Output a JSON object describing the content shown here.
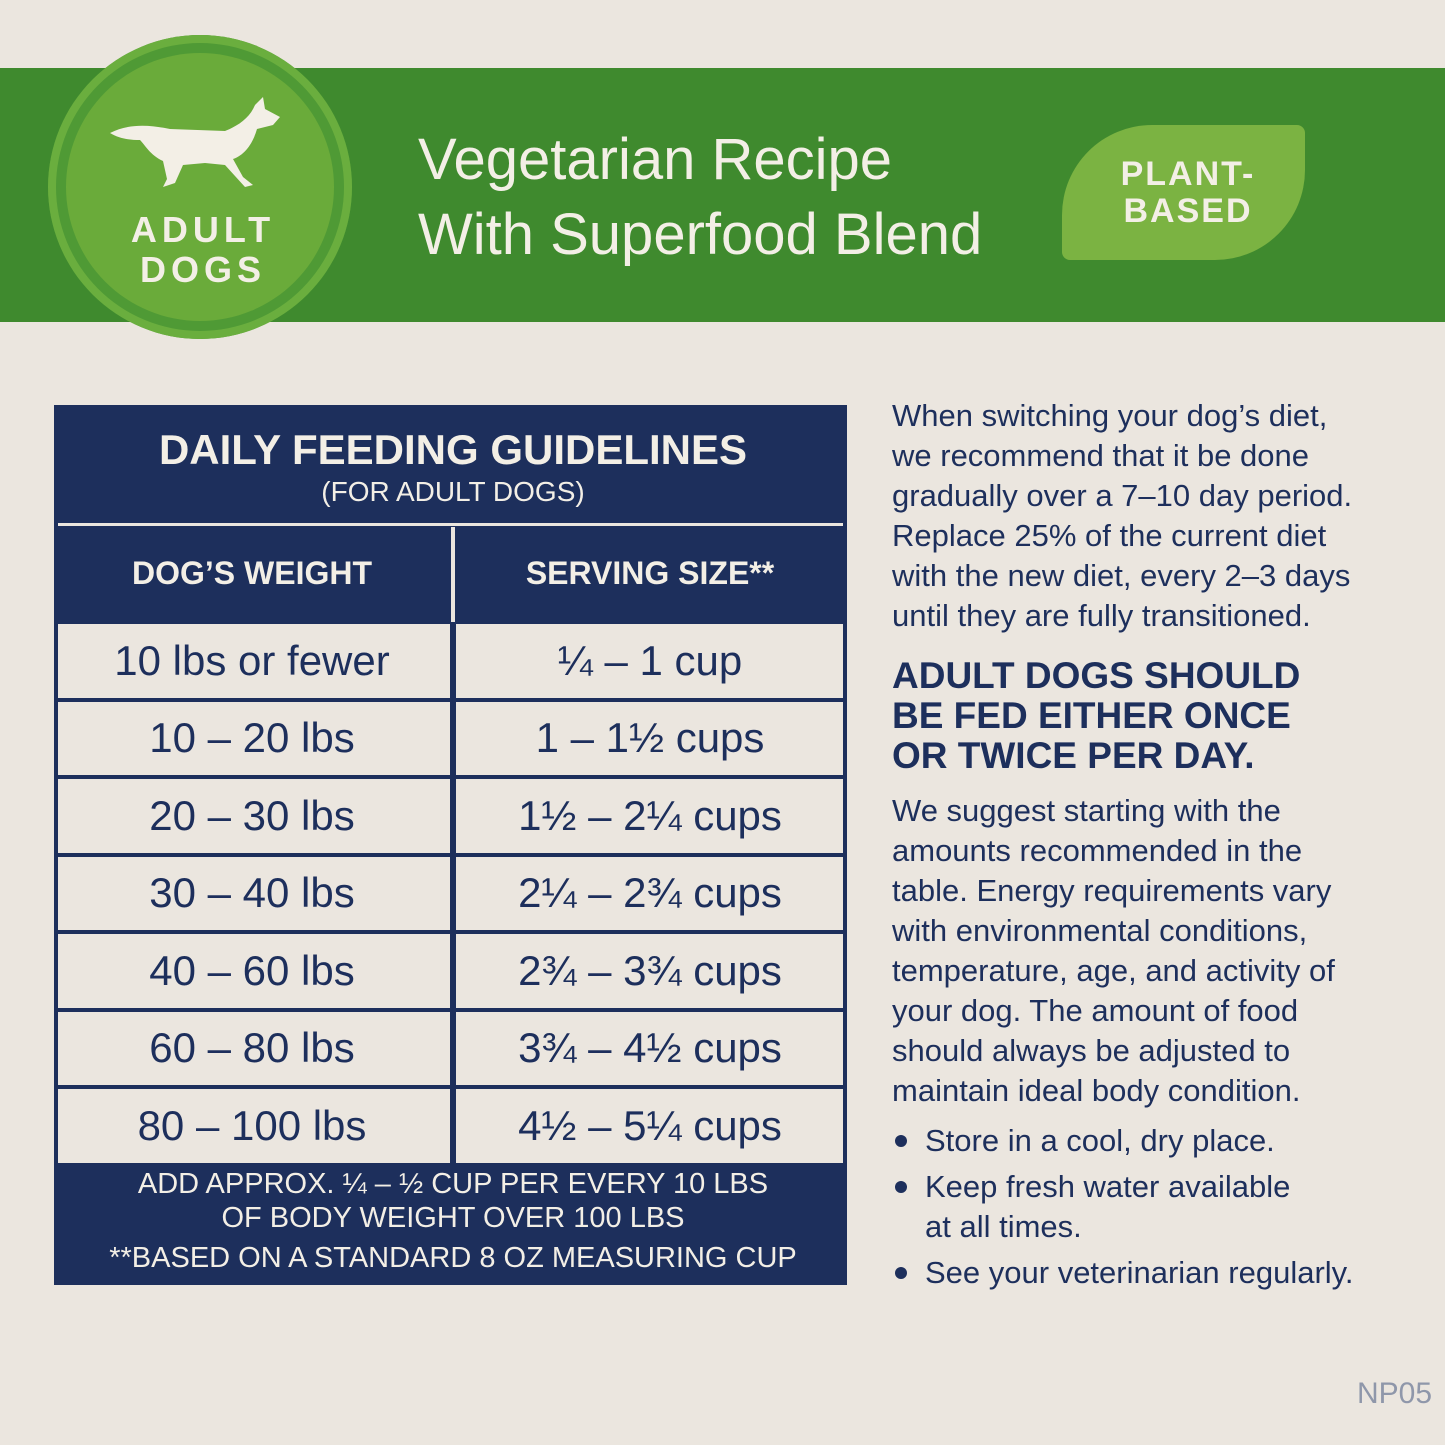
{
  "header": {
    "badge": [
      "ADULT",
      "DOGS"
    ],
    "title": [
      "Vegetarian Recipe",
      "With Superfood Blend"
    ],
    "tag": [
      "PLANT-",
      "BASED"
    ]
  },
  "table": {
    "title": "DAILY FEEDING GUIDELINES",
    "subtitle": "(FOR ADULT DOGS)",
    "columns": [
      "DOG’S WEIGHT",
      "SERVING SIZE**"
    ],
    "rows": [
      [
        "10 lbs or fewer",
        "¼ – 1 cup"
      ],
      [
        "10 – 20 lbs",
        "1 – 1½ cups"
      ],
      [
        "20 – 30 lbs",
        "1½ – 2¼ cups"
      ],
      [
        "30 – 40 lbs",
        "2¼ – 2¾ cups"
      ],
      [
        "40 – 60 lbs",
        "2¾ – 3¾ cups"
      ],
      [
        "60 – 80 lbs",
        "3¾ – 4½ cups"
      ],
      [
        "80 – 100 lbs",
        "4½ – 5¼ cups"
      ]
    ],
    "notes": [
      "ADD APPROX. ¼ – ½ CUP PER EVERY 10 LBS",
      "OF BODY WEIGHT OVER 100 LBS",
      "**BASED ON A STANDARD 8 OZ MEASURING CUP"
    ]
  },
  "text": {
    "intro": [
      "When switching your dog’s diet,",
      "we recommend that it be done",
      "gradually over a 7–10 day period.",
      "Replace 25% of the current diet",
      "with the new diet, every 2–3 days",
      "until they are fully transitioned."
    ],
    "heading": [
      "ADULT DOGS SHOULD",
      "BE FED EITHER ONCE",
      "OR TWICE PER DAY."
    ],
    "body": [
      "We suggest starting with the",
      "amounts recommended in the",
      "table. Energy requirements vary",
      "with environmental conditions,",
      "temperature, age, and activity of",
      "your dog. The amount of food",
      "should always be adjusted to",
      "maintain ideal body condition."
    ],
    "bullets": [
      [
        "Store in a cool, dry place."
      ],
      [
        "Keep fresh water available",
        "at all times."
      ],
      [
        "See your veterinarian regularly."
      ]
    ]
  },
  "code": "NP05"
}
